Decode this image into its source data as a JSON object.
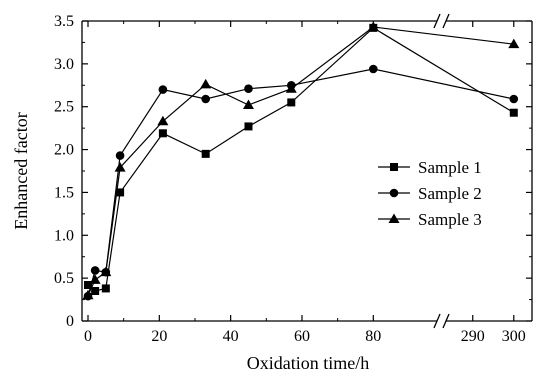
{
  "chart_data": {
    "type": "line",
    "title": "",
    "xlabel": "Oxidation time/h",
    "ylabel": "Enhanced factor",
    "ylim": [
      0,
      3.5
    ],
    "yticks": [
      "0",
      "0.5",
      "1.0",
      "1.5",
      "2.0",
      "2.5",
      "3.0",
      "3.5"
    ],
    "x_axis": {
      "type": "broken",
      "segments": [
        {
          "range": [
            0,
            83
          ],
          "ticks": [
            "0",
            "20",
            "40",
            "60",
            "80"
          ]
        },
        {
          "range": [
            283,
            302
          ],
          "ticks": [
            "290",
            "300"
          ]
        }
      ]
    },
    "grid": false,
    "legend_position": "center-right",
    "series": [
      {
        "name": "Sample 1",
        "marker": "square",
        "x": [
          0,
          2,
          5,
          9,
          21,
          33,
          45,
          57,
          80,
          300
        ],
        "y": [
          0.42,
          0.35,
          0.38,
          1.5,
          2.19,
          1.95,
          2.27,
          2.55,
          3.42,
          2.43
        ]
      },
      {
        "name": "Sample 2",
        "marker": "circle",
        "x": [
          0,
          2,
          5,
          9,
          21,
          33,
          45,
          57,
          80,
          300
        ],
        "y": [
          0.29,
          0.59,
          0.57,
          1.93,
          2.7,
          2.59,
          2.71,
          2.75,
          2.94,
          2.59
        ]
      },
      {
        "name": "Sample 3",
        "marker": "triangle",
        "x": [
          0,
          2,
          5,
          9,
          21,
          33,
          45,
          57,
          80,
          300
        ],
        "y": [
          0.3,
          0.48,
          0.57,
          1.79,
          2.33,
          2.76,
          2.52,
          2.71,
          3.43,
          3.23
        ]
      }
    ],
    "colors": {
      "line": "#000000",
      "marker": "#000000",
      "background": "#ffffff"
    }
  }
}
